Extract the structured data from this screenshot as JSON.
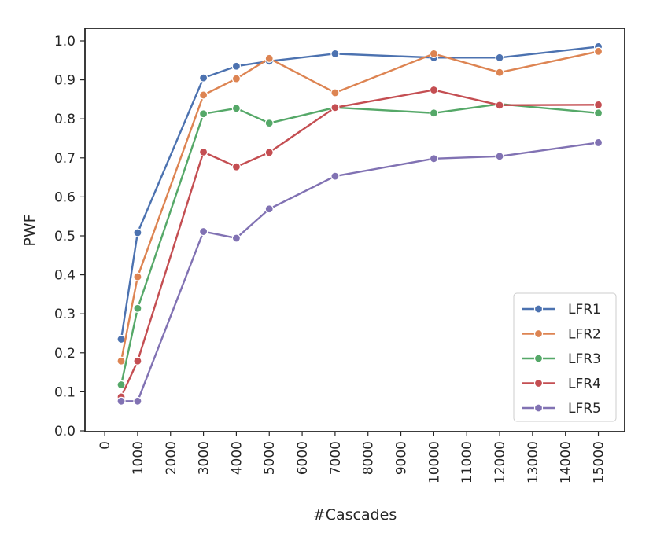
{
  "chart_data": {
    "type": "line",
    "title": "",
    "xlabel": "#Cascades",
    "ylabel": "PWF",
    "xlim": [
      0,
      15800
    ],
    "ylim": [
      0,
      1.0
    ],
    "xticks": [
      0,
      1000,
      2000,
      3000,
      4000,
      5000,
      6000,
      7000,
      8000,
      9000,
      10000,
      11000,
      12000,
      13000,
      14000,
      15000
    ],
    "xtick_labels": [
      "0",
      "1000",
      "2000",
      "3000",
      "4000",
      "5000",
      "6000",
      "7000",
      "8000",
      "9000",
      "10000",
      "11000",
      "12000",
      "13000",
      "14000",
      "15000"
    ],
    "yticks": [
      0.0,
      0.1,
      0.2,
      0.3,
      0.4,
      0.5,
      0.6,
      0.7,
      0.8,
      0.9,
      1.0
    ],
    "ytick_labels": [
      "0.0",
      "0.1",
      "0.2",
      "0.3",
      "0.4",
      "0.5",
      "0.6",
      "0.7",
      "0.8",
      "0.9",
      "1.0"
    ],
    "x": [
      500,
      1000,
      3000,
      4000,
      5000,
      7000,
      10000,
      12000,
      15000
    ],
    "legend_position": "bottom-right",
    "series": [
      {
        "name": "LFR1",
        "color": "#4c72b0",
        "values": [
          0.235,
          0.508,
          0.905,
          0.935,
          0.948,
          0.967,
          0.957,
          0.957,
          0.985
        ]
      },
      {
        "name": "LFR2",
        "color": "#dd8452",
        "values": [
          0.179,
          0.395,
          0.861,
          0.903,
          0.955,
          0.867,
          0.967,
          0.919,
          0.973
        ]
      },
      {
        "name": "LFR3",
        "color": "#55a868",
        "values": [
          0.118,
          0.314,
          0.813,
          0.827,
          0.789,
          0.829,
          0.815,
          0.838,
          0.815
        ]
      },
      {
        "name": "LFR4",
        "color": "#c44e52",
        "values": [
          0.087,
          0.179,
          0.715,
          0.677,
          0.714,
          0.829,
          0.874,
          0.835,
          0.836
        ]
      },
      {
        "name": "LFR5",
        "color": "#8172b3",
        "values": [
          0.076,
          0.076,
          0.511,
          0.494,
          0.569,
          0.653,
          0.698,
          0.704,
          0.739
        ]
      }
    ]
  }
}
